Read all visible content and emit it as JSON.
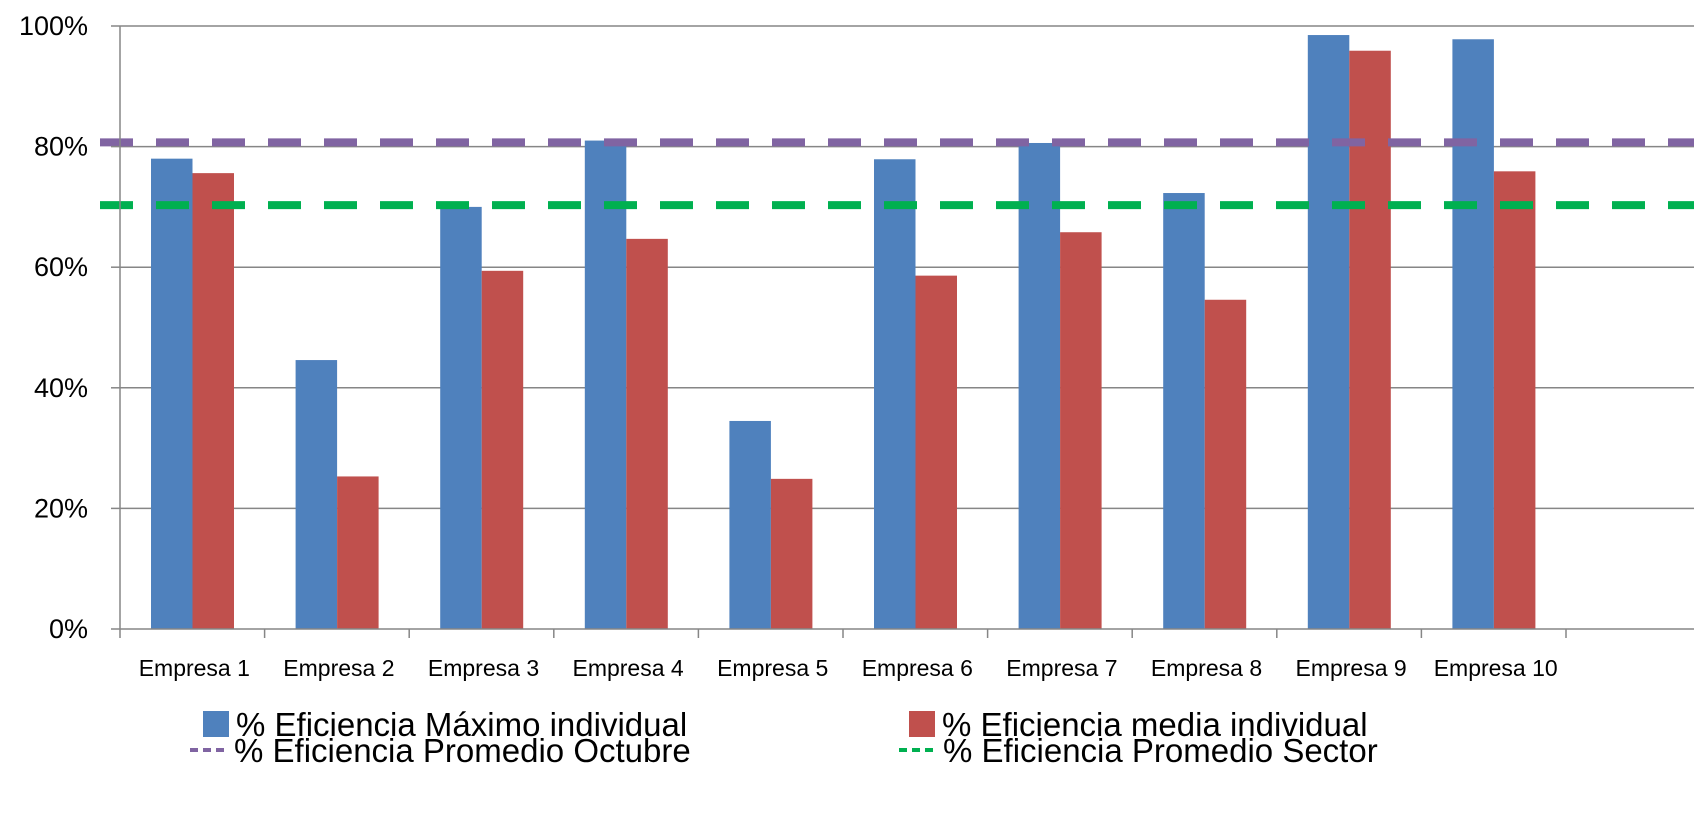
{
  "chart_data": {
    "type": "bar",
    "categories": [
      "Empresa 1",
      "Empresa 2",
      "Empresa 3",
      "Empresa 4",
      "Empresa 5",
      "Empresa 6",
      "Empresa 7",
      "Empresa 8",
      "Empresa 9",
      "Empresa 10"
    ],
    "series": [
      {
        "name": "% Eficiencia Máximo individual",
        "color": "#4f81bd",
        "values": [
          78,
          44.6,
          70,
          81,
          34.5,
          77.9,
          80.6,
          72.3,
          98.5,
          97.8
        ]
      },
      {
        "name": "% Eficiencia media individual",
        "color": "#c0504d",
        "values": [
          75.6,
          25.3,
          59.4,
          64.7,
          24.9,
          58.6,
          65.8,
          54.6,
          95.9,
          75.9
        ]
      }
    ],
    "reference_lines": [
      {
        "name": "% Eficiencia Promedio Octubre",
        "color": "#8064a2",
        "value": 80.7,
        "style": "dashed"
      },
      {
        "name": "% Eficiencia Promedio Sector",
        "color": "#00b050",
        "value": 70.3,
        "style": "dashed"
      }
    ],
    "ylim": [
      0,
      100
    ],
    "yticks": [
      "0%",
      "20%",
      "40%",
      "60%",
      "80%",
      "100%"
    ],
    "ytick_values": [
      0,
      20,
      40,
      60,
      80,
      100
    ],
    "grid": true,
    "legend_position": "bottom",
    "title": "",
    "xlabel": "",
    "ylabel": ""
  }
}
